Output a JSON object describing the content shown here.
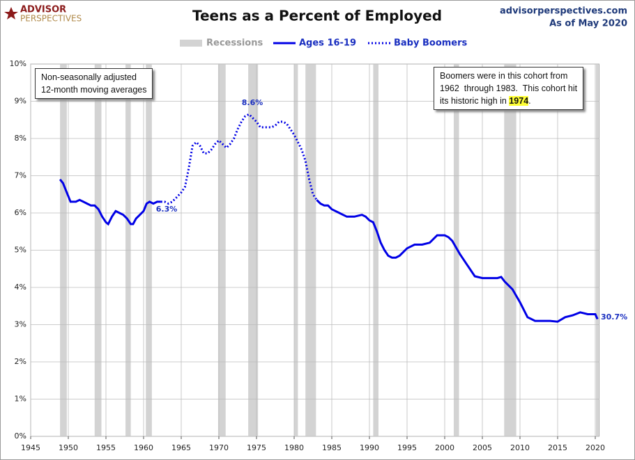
{
  "header": {
    "logo_top": "ADVISOR",
    "logo_bottom": "PERSPECTIVES",
    "site": "advisorperspectives.com",
    "as_of": "As of May 2020"
  },
  "chart_data": {
    "type": "line",
    "title": "Teens as a Percent of Employed",
    "recession_name": "Recessions",
    "recession_color": "#d3d3d3",
    "recessions": [
      [
        1948.9,
        1949.8
      ],
      [
        1953.5,
        1954.4
      ],
      [
        1957.6,
        1958.3
      ],
      [
        1960.3,
        1961.1
      ],
      [
        1969.9,
        1970.9
      ],
      [
        1973.9,
        1975.2
      ],
      [
        1980.0,
        1980.5
      ],
      [
        1981.5,
        1982.9
      ],
      [
        1990.5,
        1991.2
      ],
      [
        2001.2,
        2001.9
      ],
      [
        2007.9,
        2009.5
      ],
      [
        2020.1,
        2020.4
      ]
    ],
    "series": [
      {
        "name": "Ages 16-19",
        "color": "#0000e6",
        "style": "solid",
        "x": [
          1948.9,
          1949.3,
          1949.8,
          1950.3,
          1951,
          1951.5,
          1952,
          1952.5,
          1953,
          1953.5,
          1954,
          1954.5,
          1955,
          1955.3,
          1955.8,
          1956.3,
          1956.8,
          1957.3,
          1957.8,
          1958.3,
          1958.6,
          1959,
          1959.5,
          1960,
          1960.4,
          1960.8,
          1961.3,
          1961.8,
          1962.3
        ],
        "values": [
          6.9,
          6.8,
          6.55,
          6.3,
          6.3,
          6.35,
          6.3,
          6.25,
          6.2,
          6.2,
          6.1,
          5.9,
          5.75,
          5.7,
          5.9,
          6.05,
          6.0,
          5.95,
          5.85,
          5.7,
          5.7,
          5.85,
          5.95,
          6.05,
          6.25,
          6.3,
          6.25,
          6.3,
          6.3
        ]
      },
      {
        "name": "Baby Boomers",
        "color": "#0000e6",
        "style": "dotted",
        "x": [
          1962.3,
          1962.8,
          1963.3,
          1963.8,
          1964.3,
          1965,
          1965.5,
          1966,
          1966.5,
          1967,
          1967.5,
          1968,
          1968.5,
          1969,
          1969.5,
          1970,
          1970.5,
          1971,
          1971.5,
          1972,
          1972.5,
          1973,
          1973.5,
          1974,
          1974.5,
          1975,
          1975.5,
          1976,
          1976.5,
          1977,
          1977.5,
          1978,
          1978.5,
          1979,
          1979.5,
          1980,
          1980.5,
          1981,
          1981.5,
          1982,
          1982.5,
          1983
        ],
        "values": [
          6.3,
          6.3,
          6.25,
          6.3,
          6.4,
          6.55,
          6.7,
          7.2,
          7.8,
          7.9,
          7.8,
          7.6,
          7.6,
          7.7,
          7.85,
          7.95,
          7.85,
          7.75,
          7.85,
          8.0,
          8.25,
          8.45,
          8.6,
          8.65,
          8.55,
          8.45,
          8.3,
          8.3,
          8.3,
          8.3,
          8.35,
          8.45,
          8.45,
          8.4,
          8.25,
          8.1,
          7.9,
          7.7,
          7.4,
          6.9,
          6.5,
          6.35
        ]
      },
      {
        "name": "Ages 16-19",
        "color": "#0000e6",
        "style": "solid",
        "x": [
          1983,
          1983.5,
          1984,
          1984.5,
          1985,
          1986,
          1986.5,
          1987,
          1988,
          1989,
          1989.5,
          1990,
          1990.5,
          1991,
          1991.5,
          1992,
          1992.5,
          1993,
          1993.5,
          1994,
          1994.5,
          1995,
          1996,
          1996.5,
          1997,
          1998,
          1998.5,
          1999,
          2000,
          2000.5,
          2001,
          2002,
          2003,
          2004,
          2005,
          2006,
          2007,
          2007.5,
          2008,
          2009,
          2010,
          2010.5,
          2011,
          2012,
          2013,
          2014,
          2015,
          2016,
          2017,
          2018,
          2019,
          2020,
          2020.3
        ],
        "values": [
          6.35,
          6.25,
          6.2,
          6.2,
          6.1,
          6.0,
          5.95,
          5.9,
          5.9,
          5.95,
          5.9,
          5.8,
          5.75,
          5.5,
          5.2,
          5.0,
          4.85,
          4.8,
          4.8,
          4.85,
          4.95,
          5.05,
          5.15,
          5.15,
          5.15,
          5.2,
          5.3,
          5.4,
          5.4,
          5.35,
          5.25,
          4.9,
          4.6,
          4.3,
          4.25,
          4.25,
          4.25,
          4.28,
          4.15,
          3.95,
          3.6,
          3.4,
          3.2,
          3.1,
          3.1,
          3.1,
          3.08,
          3.2,
          3.25,
          3.33,
          3.28,
          3.28,
          3.15
        ]
      }
    ],
    "annotations": [
      "6.3%",
      "8.6%",
      "30.7%"
    ],
    "xlim": [
      1945,
      2020.5
    ],
    "xticks": [
      1945,
      1950,
      1955,
      1960,
      1965,
      1970,
      1975,
      1980,
      1985,
      1990,
      1995,
      2000,
      2005,
      2010,
      2015,
      2020
    ],
    "ylim": [
      0,
      10
    ],
    "yticks": [
      {
        "value": 0,
        "label": "0%"
      },
      {
        "value": 1,
        "label": "1%"
      },
      {
        "value": 2,
        "label": "2%"
      },
      {
        "value": 3,
        "label": "3%"
      },
      {
        "value": 4,
        "label": "4%"
      },
      {
        "value": 5,
        "label": "5%"
      },
      {
        "value": 6,
        "label": "6%"
      },
      {
        "value": 7,
        "label": "7%"
      },
      {
        "value": 8,
        "label": "8%"
      },
      {
        "value": 9,
        "label": "9%"
      },
      {
        "value": 10,
        "label": "10%"
      }
    ],
    "grid": true,
    "notes": {
      "left": [
        "Non-seasonally adjusted",
        "12-month moving averages"
      ],
      "right": [
        "Boomers were in this cohort from",
        "1962  through 1983.  This cohort hit",
        "its historic high in ",
        "1974",
        "."
      ]
    }
  }
}
